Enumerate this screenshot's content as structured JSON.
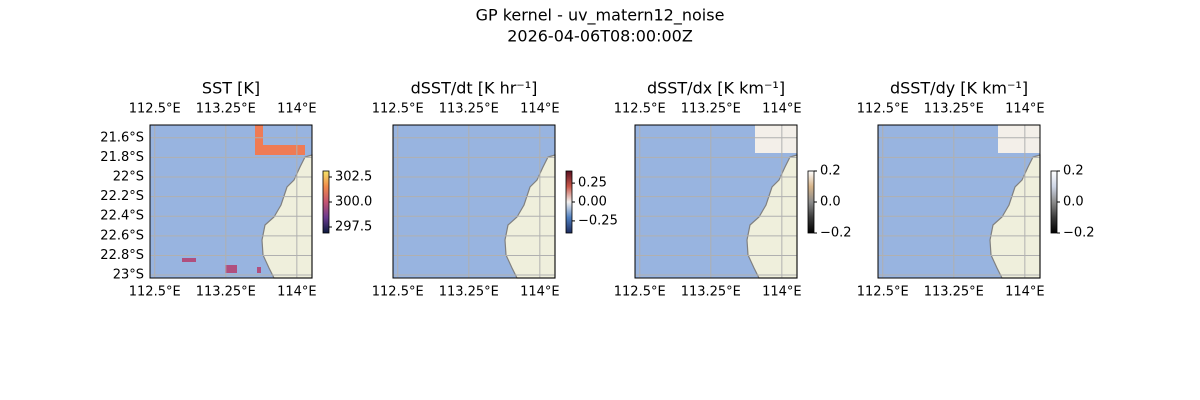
{
  "title": "GP kernel - uv_matern12_noise",
  "subtitle": "2026-04-06T08:00:00Z",
  "map": {
    "lon_lim": [
      112.45,
      114.16
    ],
    "lat_lim": [
      -21.47,
      -23.03
    ],
    "lon_ticks": [
      {
        "value": 112.5,
        "label": "112.5°E"
      },
      {
        "value": 113.25,
        "label": "113.25°E"
      },
      {
        "value": 114,
        "label": "114°E"
      }
    ],
    "lat_ticks": [
      {
        "value": -21.6,
        "label": "21.6°S"
      },
      {
        "value": -21.8,
        "label": "21.8°S"
      },
      {
        "value": -22,
        "label": "22°S"
      },
      {
        "value": -22.2,
        "label": "22.2°S"
      },
      {
        "value": -22.4,
        "label": "22.4°S"
      },
      {
        "value": -22.6,
        "label": "22.6°S"
      },
      {
        "value": -22.8,
        "label": "22.8°S"
      },
      {
        "value": -23,
        "label": "23°S"
      }
    ],
    "ocean_color": "#98b4e0",
    "land_color": "#efefdc",
    "grid_color": "#b0b0b0"
  },
  "panels": [
    {
      "title": "SST [K]",
      "colorbar": {
        "lim": [
          296.9,
          303.1
        ],
        "ticks": [
          302.5,
          {
            "value": 300,
            "label": "300.0"
          },
          297.5
        ],
        "colors": [
          "#0b1a3e",
          "#6a3b8f",
          "#c45472",
          "#f08a4b",
          "#f6e56a"
        ]
      }
    },
    {
      "title": "dSST/dt [K hr⁻¹]",
      "colorbar": {
        "lim": [
          -0.41,
          0.41
        ],
        "ticks": [
          0.25,
          {
            "value": 0,
            "label": "0.00"
          },
          {
            "value": -0.25,
            "label": "−0.25"
          }
        ],
        "colors": [
          "#1c2c5e",
          "#4f7fc0",
          "#f2f0ee",
          "#c8574a",
          "#5a1020"
        ]
      }
    },
    {
      "title": "dSST/dx [K km⁻¹]",
      "colorbar": {
        "lim": [
          -0.2,
          0.2
        ],
        "ticks": [
          0.2,
          {
            "value": 0,
            "label": "0.0"
          },
          {
            "value": -0.2,
            "label": "−0.2"
          }
        ],
        "colors": [
          "#000000",
          "#3a3a3a",
          "#8c8c8c",
          "#d6b48a",
          "#ffffff"
        ]
      }
    },
    {
      "title": "dSST/dy [K km⁻¹]",
      "colorbar": {
        "lim": [
          -0.2,
          0.2
        ],
        "ticks": [
          0.2,
          {
            "value": 0,
            "label": "0.0"
          },
          {
            "value": -0.2,
            "label": "−0.2"
          }
        ],
        "colors": [
          "#000000",
          "#3a3a3a",
          "#8c8c8c",
          "#cfd6e6",
          "#ffffff"
        ]
      }
    }
  ]
}
